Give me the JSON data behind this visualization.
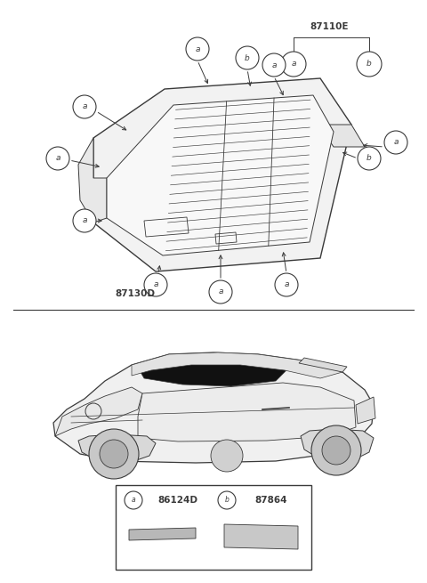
{
  "bg_color": "#ffffff",
  "line_color": "#3a3a3a",
  "fig_width": 4.8,
  "fig_height": 6.55,
  "dpi": 100,
  "part_87110E": "87110E",
  "part_87130D": "87130D",
  "part_a": "86124D",
  "part_b": "87864",
  "font_size_label": 7.5,
  "font_size_callout": 6.5,
  "font_size_part": 7
}
